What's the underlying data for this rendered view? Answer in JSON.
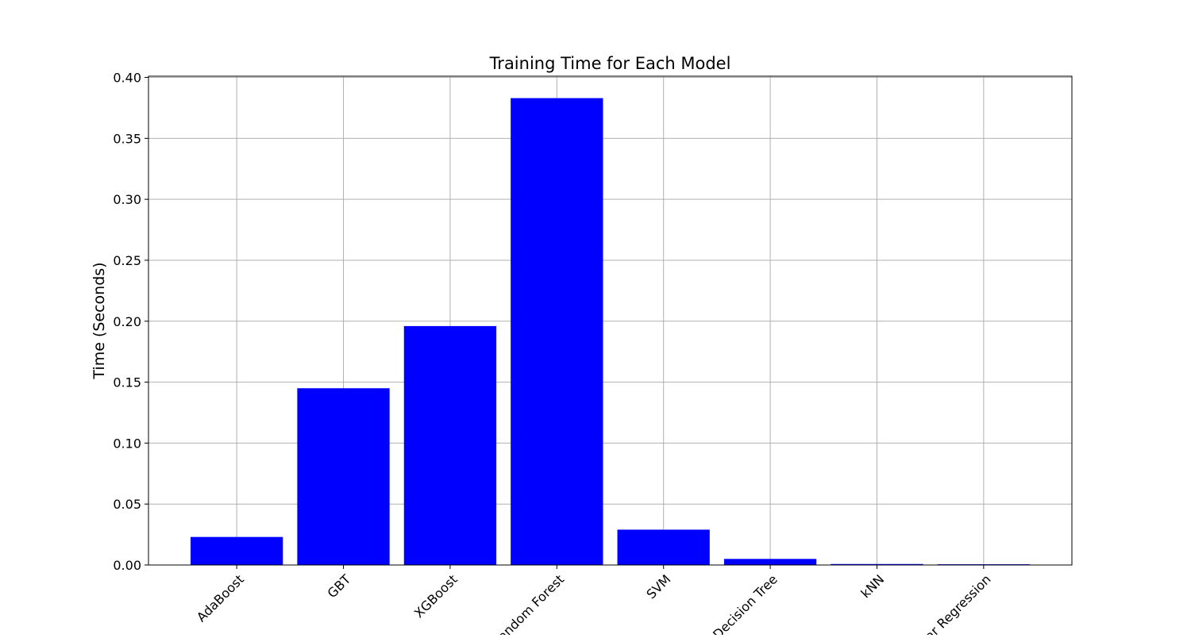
{
  "chart_data": {
    "type": "bar",
    "title": "Training Time for Each Model",
    "xlabel": "",
    "ylabel": "Time (Seconds)",
    "categories": [
      "AdaBoost",
      "GBT",
      "XGBoost",
      "Random Forest",
      "SVM",
      "Decision Tree",
      "kNN",
      "Linear Regression"
    ],
    "values": [
      0.023,
      0.145,
      0.196,
      0.383,
      0.029,
      0.005,
      0.0008,
      0.0006
    ],
    "ylim": [
      0,
      0.401
    ],
    "yticks": [
      0.0,
      0.05,
      0.1,
      0.15,
      0.2,
      0.25,
      0.3,
      0.35,
      0.4
    ],
    "ytick_labels": [
      "0.00",
      "0.05",
      "0.10",
      "0.15",
      "0.20",
      "0.25",
      "0.30",
      "0.35",
      "0.40"
    ],
    "grid": true,
    "bar_color": "#0000ff",
    "grid_color": "#b0b0b0"
  }
}
